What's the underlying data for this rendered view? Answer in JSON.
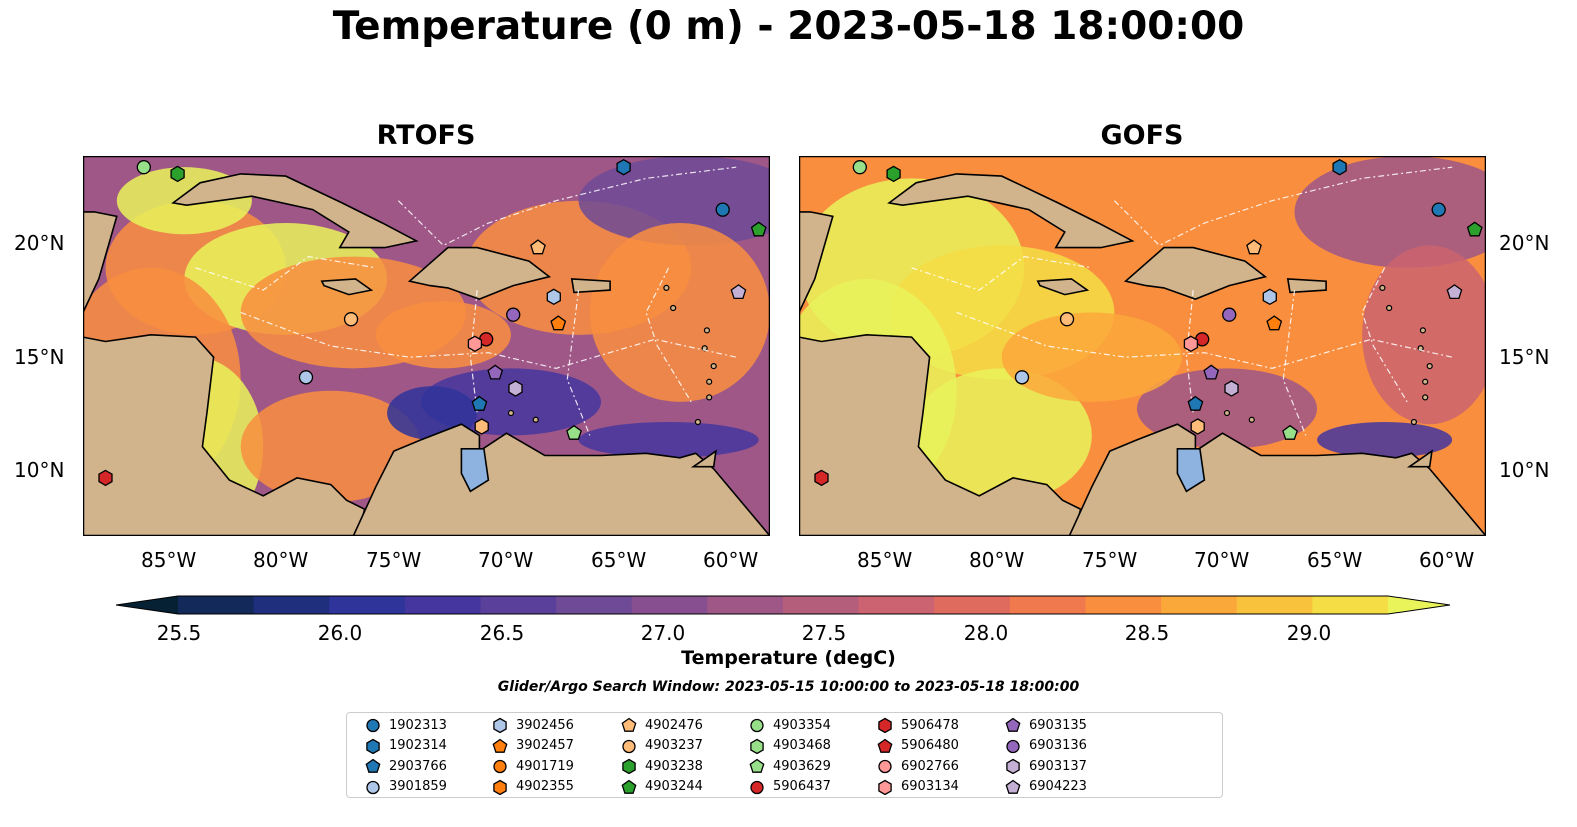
{
  "title": "Temperature (0 m) - 2023-05-18 18:00:00",
  "panels": [
    {
      "title": "RTOFS",
      "id": "rtofs"
    },
    {
      "title": "GOFS",
      "id": "gofs"
    }
  ],
  "lat_labels": [
    "20°N",
    "15°N",
    "10°N"
  ],
  "lon_labels": [
    "85°W",
    "80°W",
    "75°W",
    "70°W",
    "65°W",
    "60°W"
  ],
  "colorbar": {
    "label": "Temperature (degC)",
    "ticks": [
      "25.5",
      "26.0",
      "26.5",
      "27.0",
      "27.5",
      "28.0",
      "28.5",
      "29.0"
    ],
    "min": 25.25,
    "max": 29.25,
    "colors": [
      "#062034",
      "#13295a",
      "#1f2f7e",
      "#2f349a",
      "#45369f",
      "#5a409b",
      "#6f4a96",
      "#874f8f",
      "#9f5787",
      "#b55e7c",
      "#cb6470",
      "#df6b5e",
      "#f07a4d",
      "#f98e3f",
      "#fba83b",
      "#f8c23d",
      "#f5dd45",
      "#e9f35a"
    ]
  },
  "search_window": "Glider/Argo Search Window: 2023-05-15 10:00:00 to 2023-05-18 18:00:00",
  "colors": {
    "land": "#d2b48c",
    "lake": "#8fb3e0",
    "warm": "#e9f35a",
    "hot": "#f98e3f",
    "mid": "#9f5787",
    "cool": "#45369f"
  },
  "legend": [
    {
      "id": "1902313",
      "shape": "circle",
      "color": "#1f77b4"
    },
    {
      "id": "1902314",
      "shape": "hexagon",
      "color": "#1f77b4"
    },
    {
      "id": "2903766",
      "shape": "pentagon",
      "color": "#1f77b4"
    },
    {
      "id": "3901859",
      "shape": "circle",
      "color": "#aec7e8"
    },
    {
      "id": "3902456",
      "shape": "hexagon",
      "color": "#aec7e8"
    },
    {
      "id": "3902457",
      "shape": "pentagon",
      "color": "#ff7f0e"
    },
    {
      "id": "4901719",
      "shape": "circle",
      "color": "#ff7f0e"
    },
    {
      "id": "4902355",
      "shape": "hexagon",
      "color": "#ff7f0e"
    },
    {
      "id": "4902476",
      "shape": "pentagon",
      "color": "#ffbb78"
    },
    {
      "id": "4903237",
      "shape": "circle",
      "color": "#ffbb78"
    },
    {
      "id": "4903238",
      "shape": "hexagon",
      "color": "#2ca02c"
    },
    {
      "id": "4903244",
      "shape": "pentagon",
      "color": "#2ca02c"
    },
    {
      "id": "4903354",
      "shape": "circle",
      "color": "#98df8a"
    },
    {
      "id": "4903468",
      "shape": "hexagon",
      "color": "#98df8a"
    },
    {
      "id": "4903629",
      "shape": "pentagon",
      "color": "#98df8a"
    },
    {
      "id": "5906437",
      "shape": "circle",
      "color": "#d62728"
    },
    {
      "id": "5906478",
      "shape": "hexagon",
      "color": "#d62728"
    },
    {
      "id": "5906480",
      "shape": "pentagon",
      "color": "#d62728"
    },
    {
      "id": "6902766",
      "shape": "circle",
      "color": "#ff9896"
    },
    {
      "id": "6903134",
      "shape": "hexagon",
      "color": "#ff9896"
    },
    {
      "id": "6903135",
      "shape": "pentagon",
      "color": "#9467bd"
    },
    {
      "id": "6903136",
      "shape": "circle",
      "color": "#9467bd"
    },
    {
      "id": "6903137",
      "shape": "hexagon",
      "color": "#c5b0d5"
    },
    {
      "id": "6904223",
      "shape": "pentagon",
      "color": "#c5b0d5"
    }
  ],
  "map_extent": {
    "lon": [
      -89,
      -58.5
    ],
    "lat": [
      7,
      24
    ]
  },
  "floats": [
    {
      "lon": -86.3,
      "lat": 23.5,
      "shape": "circle",
      "color": "#98df8a"
    },
    {
      "lon": -84.8,
      "lat": 23.2,
      "shape": "hexagon",
      "color": "#2ca02c"
    },
    {
      "lon": -65.0,
      "lat": 23.5,
      "shape": "hexagon",
      "color": "#1f77b4"
    },
    {
      "lon": -60.6,
      "lat": 21.6,
      "shape": "circle",
      "color": "#1f77b4"
    },
    {
      "lon": -59.0,
      "lat": 20.7,
      "shape": "pentagon",
      "color": "#2ca02c"
    },
    {
      "lon": -68.8,
      "lat": 19.9,
      "shape": "pentagon",
      "color": "#ffbb78"
    },
    {
      "lon": -59.9,
      "lat": 17.9,
      "shape": "pentagon",
      "color": "#c5b0d5"
    },
    {
      "lon": -68.1,
      "lat": 17.7,
      "shape": "hexagon",
      "color": "#aec7e8"
    },
    {
      "lon": -77.1,
      "lat": 16.7,
      "shape": "circle",
      "color": "#ffbb78"
    },
    {
      "lon": -69.9,
      "lat": 16.9,
      "shape": "circle",
      "color": "#9467bd"
    },
    {
      "lon": -67.9,
      "lat": 16.5,
      "shape": "pentagon",
      "color": "#ff7f0e"
    },
    {
      "lon": -71.1,
      "lat": 15.8,
      "shape": "circle",
      "color": "#d62728"
    },
    {
      "lon": -71.6,
      "lat": 15.6,
      "shape": "hexagon",
      "color": "#ff9896"
    },
    {
      "lon": -79.1,
      "lat": 14.1,
      "shape": "circle",
      "color": "#aec7e8"
    },
    {
      "lon": -70.7,
      "lat": 14.3,
      "shape": "pentagon",
      "color": "#9467bd"
    },
    {
      "lon": -69.8,
      "lat": 13.6,
      "shape": "hexagon",
      "color": "#c5b0d5"
    },
    {
      "lon": -71.4,
      "lat": 12.9,
      "shape": "pentagon",
      "color": "#1f77b4"
    },
    {
      "lon": -71.3,
      "lat": 11.9,
      "shape": "hexagon",
      "color": "#ffbb78"
    },
    {
      "lon": -67.2,
      "lat": 11.6,
      "shape": "pentagon",
      "color": "#98df8a"
    },
    {
      "lon": -88.0,
      "lat": 9.6,
      "shape": "hexagon",
      "color": "#d62728"
    }
  ]
}
